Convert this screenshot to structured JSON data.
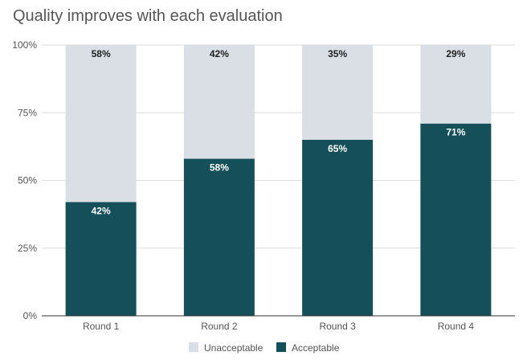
{
  "chart_data": {
    "type": "bar",
    "stacked": true,
    "title": "Quality improves with each evaluation",
    "categories": [
      "Round 1",
      "Round 2",
      "Round 3",
      "Round 4"
    ],
    "series": [
      {
        "name": "Acceptable",
        "values": [
          42,
          58,
          65,
          71
        ],
        "labels": [
          "42%",
          "58%",
          "65%",
          "71%"
        ],
        "color": "#154f5a",
        "label_color": "#ffffff"
      },
      {
        "name": "Unacceptable",
        "values": [
          58,
          42,
          35,
          29
        ],
        "labels": [
          "58%",
          "42%",
          "35%",
          "29%"
        ],
        "color": "#d9dfe5",
        "label_color": "#222222"
      }
    ],
    "legend_order": [
      "Unacceptable",
      "Acceptable"
    ],
    "yticks": [
      "0%",
      "25%",
      "50%",
      "75%",
      "100%"
    ],
    "ylim": [
      0,
      100
    ],
    "grid": true,
    "legend_position": "bottom"
  }
}
